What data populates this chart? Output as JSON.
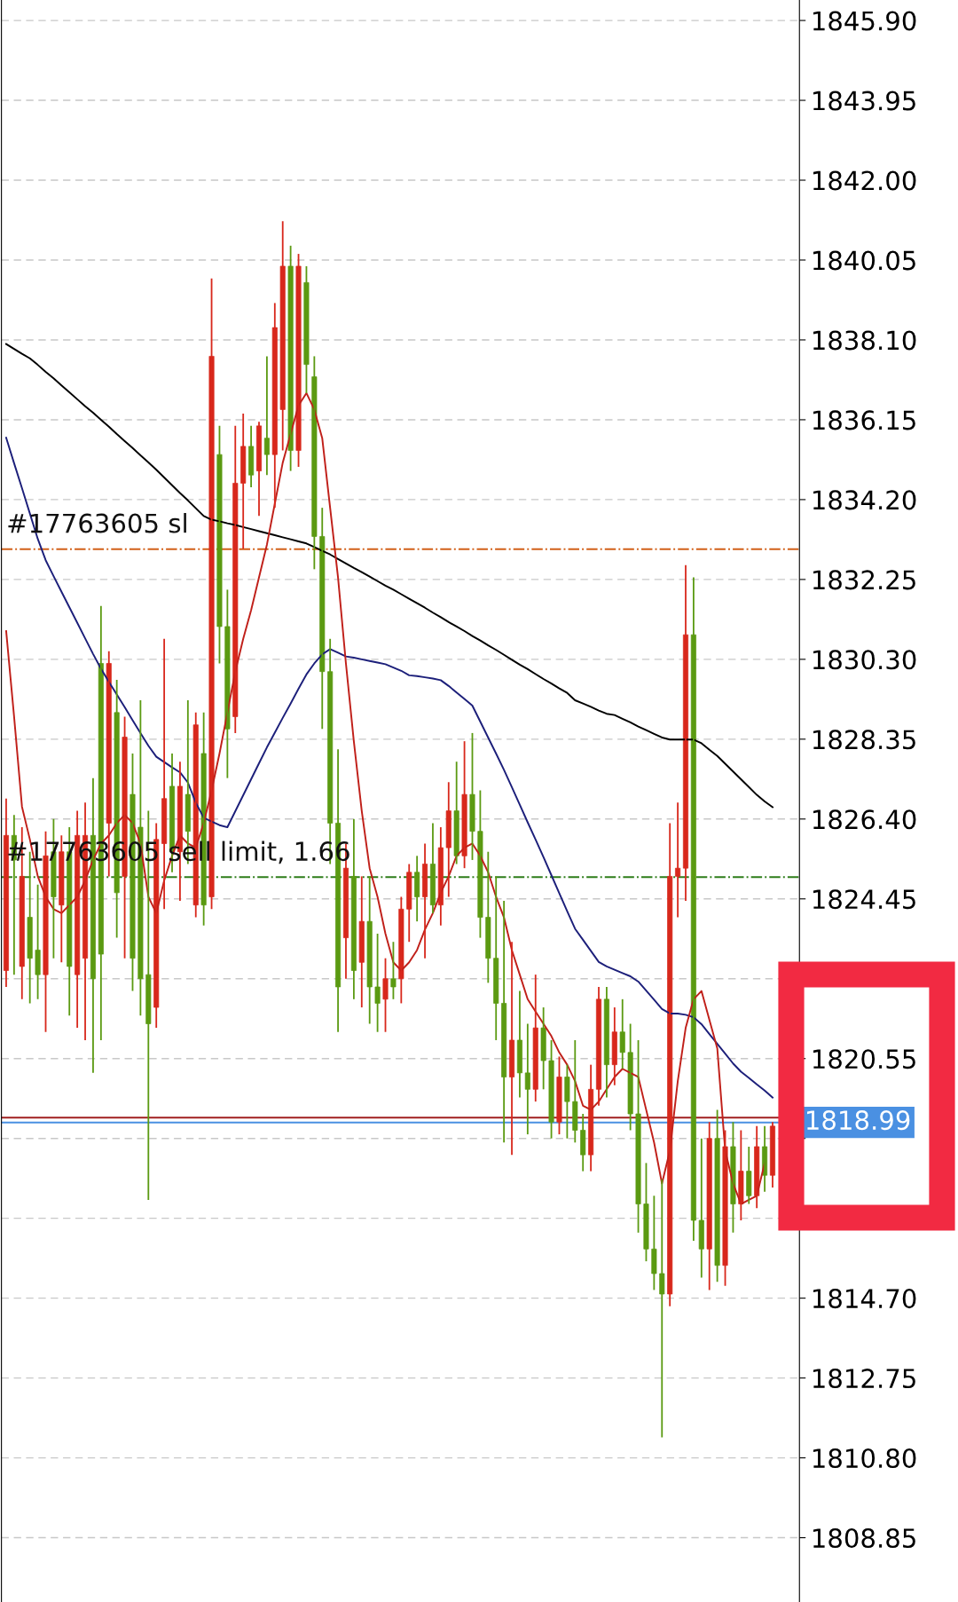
{
  "chart_data": {
    "type": "candlestick",
    "categories": [
      null,
      null,
      null,
      null,
      null,
      null,
      null,
      null,
      null,
      null,
      null,
      null,
      null,
      null,
      null,
      null,
      null,
      null,
      null,
      null,
      null,
      null,
      null,
      null,
      null,
      null,
      null,
      null,
      null,
      null,
      null,
      null,
      null,
      null,
      null,
      null,
      null,
      null,
      null,
      null,
      null,
      null,
      null,
      null,
      null,
      null,
      null,
      null,
      null,
      null,
      null,
      null,
      null,
      null,
      null,
      null,
      null,
      null,
      null,
      null,
      null,
      null,
      null,
      null,
      null,
      null,
      null,
      null,
      null,
      null,
      null,
      null,
      null,
      null,
      null,
      null,
      null,
      null,
      null,
      null,
      null,
      null,
      null,
      null,
      null,
      null,
      null,
      null,
      null,
      null,
      null,
      null,
      null,
      null,
      null,
      null,
      null,
      null
    ],
    "ohlc": [
      [
        1822.7,
        1826.9,
        1822.3,
        1826.0
      ],
      [
        1826.0,
        1826.5,
        1822.6,
        1825.4
      ],
      [
        1822.8,
        1826.2,
        1822.0,
        1825.0
      ],
      [
        1824.0,
        1825.6,
        1821.9,
        1823.0
      ],
      [
        1823.2,
        1824.8,
        1822.0,
        1822.6
      ],
      [
        1822.6,
        1826.1,
        1821.2,
        1825.5
      ],
      [
        1825.6,
        1826.4,
        1823.0,
        1824.5
      ],
      [
        1824.3,
        1826.0,
        1822.9,
        1825.6
      ],
      [
        1825.6,
        1826.2,
        1821.6,
        1822.8
      ],
      [
        1822.6,
        1826.6,
        1821.3,
        1826.0
      ],
      [
        1823.0,
        1826.8,
        1821.0,
        1826.0
      ],
      [
        1826.0,
        1827.4,
        1820.2,
        1822.5
      ],
      [
        1830.2,
        1831.6,
        1821.0,
        1823.1
      ],
      [
        1826.3,
        1830.5,
        1825.0,
        1830.2
      ],
      [
        1829.0,
        1829.8,
        1823.5,
        1824.6
      ],
      [
        1825.0,
        1828.9,
        1823.0,
        1828.4
      ],
      [
        1827.0,
        1828.0,
        1822.2,
        1823.0
      ],
      [
        1826.2,
        1829.3,
        1821.6,
        1822.5
      ],
      [
        1822.6,
        1826.6,
        1817.1,
        1821.4
      ],
      [
        1821.8,
        1826.3,
        1821.3,
        1825.9
      ],
      [
        1825.8,
        1830.8,
        1824.2,
        1826.9
      ],
      [
        1827.2,
        1828.0,
        1825.1,
        1825.6
      ],
      [
        1825.6,
        1827.8,
        1824.4,
        1827.2
      ],
      [
        1827.0,
        1829.3,
        1825.3,
        1826.1
      ],
      [
        1824.3,
        1829.0,
        1824.0,
        1828.7
      ],
      [
        1828.0,
        1829.0,
        1823.8,
        1824.3
      ],
      [
        1824.5,
        1839.6,
        1824.2,
        1837.7
      ],
      [
        1835.3,
        1836.0,
        1830.2,
        1831.1
      ],
      [
        1831.1,
        1832.0,
        1827.4,
        1828.6
      ],
      [
        1828.9,
        1836.0,
        1828.5,
        1834.6
      ],
      [
        1834.6,
        1836.3,
        1833.0,
        1835.5
      ],
      [
        1835.5,
        1836.0,
        1834.5,
        1834.8
      ],
      [
        1834.9,
        1836.1,
        1833.8,
        1836.0
      ],
      [
        1835.7,
        1837.7,
        1834.8,
        1835.3
      ],
      [
        1835.3,
        1839.0,
        1834.0,
        1838.4
      ],
      [
        1836.4,
        1841.0,
        1835.4,
        1839.9
      ],
      [
        1839.9,
        1840.4,
        1834.9,
        1835.4
      ],
      [
        1835.4,
        1840.2,
        1835.0,
        1839.9
      ],
      [
        1839.5,
        1839.9,
        1836.8,
        1837.5
      ],
      [
        1837.2,
        1837.7,
        1832.5,
        1833.3
      ],
      [
        1833.3,
        1834.0,
        1828.6,
        1830.0
      ],
      [
        1830.0,
        1830.8,
        1825.3,
        1826.3
      ],
      [
        1826.3,
        1828.1,
        1821.2,
        1822.3
      ],
      [
        1823.5,
        1825.8,
        1822.5,
        1825.2
      ],
      [
        1825.0,
        1826.4,
        1822.0,
        1822.7
      ],
      [
        1822.9,
        1825.0,
        1821.8,
        1823.9
      ],
      [
        1823.9,
        1825.0,
        1821.4,
        1822.3
      ],
      [
        1822.3,
        1823.6,
        1821.2,
        1821.9
      ],
      [
        1822.0,
        1823.0,
        1821.2,
        1822.5
      ],
      [
        1822.5,
        1823.4,
        1822.0,
        1822.3
      ],
      [
        1822.5,
        1824.5,
        1821.9,
        1824.2
      ],
      [
        1824.2,
        1825.3,
        1823.4,
        1825.1
      ],
      [
        1825.1,
        1825.5,
        1823.9,
        1824.5
      ],
      [
        1824.5,
        1825.8,
        1823.0,
        1825.3
      ],
      [
        1825.3,
        1826.3,
        1824.1,
        1824.3
      ],
      [
        1824.3,
        1826.2,
        1823.8,
        1825.7
      ],
      [
        1825.7,
        1827.3,
        1824.5,
        1826.6
      ],
      [
        1826.6,
        1827.8,
        1825.3,
        1825.5
      ],
      [
        1825.5,
        1828.3,
        1825.2,
        1827.0
      ],
      [
        1827.0,
        1828.5,
        1825.4,
        1826.1
      ],
      [
        1826.1,
        1827.1,
        1823.5,
        1824.0
      ],
      [
        1824.0,
        1825.6,
        1822.4,
        1823.0
      ],
      [
        1823.0,
        1825.0,
        1821.0,
        1821.9
      ],
      [
        1821.9,
        1824.4,
        1818.5,
        1820.1
      ],
      [
        1820.1,
        1823.4,
        1818.2,
        1821.0
      ],
      [
        1821.0,
        1822.2,
        1819.6,
        1820.2
      ],
      [
        1820.2,
        1821.4,
        1818.7,
        1819.8
      ],
      [
        1819.8,
        1822.6,
        1819.5,
        1821.3
      ],
      [
        1821.3,
        1821.8,
        1819.8,
        1820.5
      ],
      [
        1820.5,
        1821.0,
        1818.6,
        1819.0
      ],
      [
        1819.0,
        1820.6,
        1818.7,
        1820.1
      ],
      [
        1820.1,
        1820.4,
        1818.6,
        1819.5
      ],
      [
        1819.5,
        1821.0,
        1818.5,
        1818.8
      ],
      [
        1818.8,
        1819.2,
        1817.8,
        1818.2
      ],
      [
        1818.2,
        1820.4,
        1817.8,
        1819.8
      ],
      [
        1819.8,
        1822.3,
        1819.4,
        1822.0
      ],
      [
        1822.0,
        1822.3,
        1819.6,
        1820.4
      ],
      [
        1820.4,
        1821.8,
        1819.9,
        1821.2
      ],
      [
        1821.2,
        1822.0,
        1820.3,
        1820.7
      ],
      [
        1820.7,
        1821.4,
        1818.8,
        1819.2
      ],
      [
        1819.2,
        1821.0,
        1816.3,
        1817.0
      ],
      [
        1817.0,
        1818.0,
        1815.6,
        1815.9
      ],
      [
        1815.9,
        1817.2,
        1814.9,
        1815.3
      ],
      [
        1815.3,
        1817.6,
        1811.3,
        1814.8
      ],
      [
        1814.8,
        1826.3,
        1814.5,
        1825.0
      ],
      [
        1825.0,
        1826.8,
        1824.0,
        1825.2
      ],
      [
        1825.2,
        1832.6,
        1824.4,
        1830.9
      ],
      [
        1830.9,
        1832.3,
        1816.1,
        1816.6
      ],
      [
        1816.6,
        1818.6,
        1815.2,
        1815.9
      ],
      [
        1815.9,
        1819.0,
        1814.9,
        1818.6
      ],
      [
        1818.6,
        1819.3,
        1815.1,
        1815.5
      ],
      [
        1815.5,
        1818.8,
        1815.0,
        1818.4
      ],
      [
        1818.4,
        1819.0,
        1816.3,
        1817.0
      ],
      [
        1817.0,
        1818.8,
        1816.6,
        1817.8
      ],
      [
        1817.8,
        1818.4,
        1817.0,
        1817.2
      ],
      [
        1817.2,
        1818.9,
        1816.9,
        1818.4
      ],
      [
        1818.4,
        1818.9,
        1817.3,
        1817.7
      ],
      [
        1817.7,
        1819.0,
        1817.4,
        1818.9
      ]
    ],
    "colors": [
      "#d8281c",
      "#5b9a12",
      "#d8281c",
      "#5b9a12",
      "#5b9a12",
      "#d8281c",
      "#5b9a12",
      "#d8281c",
      "#5b9a12",
      "#d8281c",
      "#d8281c",
      "#5b9a12",
      "#5b9a12",
      "#d8281c",
      "#5b9a12",
      "#d8281c",
      "#5b9a12",
      "#5b9a12",
      "#5b9a12",
      "#d8281c",
      "#d8281c",
      "#5b9a12",
      "#d8281c",
      "#5b9a12",
      "#d8281c",
      "#5b9a12",
      "#d8281c",
      "#5b9a12",
      "#5b9a12",
      "#d8281c",
      "#d8281c",
      "#5b9a12",
      "#d8281c",
      "#5b9a12",
      "#d8281c",
      "#d8281c",
      "#5b9a12",
      "#d8281c",
      "#5b9a12",
      "#5b9a12",
      "#5b9a12",
      "#5b9a12",
      "#5b9a12",
      "#d8281c",
      "#5b9a12",
      "#d8281c",
      "#5b9a12",
      "#5b9a12",
      "#d8281c",
      "#5b9a12",
      "#d8281c",
      "#d8281c",
      "#5b9a12",
      "#d8281c",
      "#5b9a12",
      "#d8281c",
      "#d8281c",
      "#5b9a12",
      "#d8281c",
      "#5b9a12",
      "#5b9a12",
      "#5b9a12",
      "#5b9a12",
      "#5b9a12",
      "#d8281c",
      "#5b9a12",
      "#5b9a12",
      "#d8281c",
      "#5b9a12",
      "#5b9a12",
      "#d8281c",
      "#5b9a12",
      "#5b9a12",
      "#5b9a12",
      "#d8281c",
      "#d8281c",
      "#5b9a12",
      "#d8281c",
      "#5b9a12",
      "#5b9a12",
      "#5b9a12",
      "#5b9a12",
      "#5b9a12",
      "#5b9a12",
      "#d8281c",
      "#d8281c",
      "#d8281c",
      "#5b9a12",
      "#5b9a12",
      "#d8281c",
      "#5b9a12",
      "#d8281c",
      "#5b9a12",
      "#d8281c",
      "#5b9a12",
      "#d8281c",
      "#5b9a12",
      "#d8281c"
    ],
    "series": [
      {
        "type": "line",
        "color": "#000000",
        "values": [
          1838.0,
          1837.88,
          1837.76,
          1837.65,
          1837.49,
          1837.32,
          1837.16,
          1836.99,
          1836.82,
          1836.65,
          1836.48,
          1836.32,
          1836.15,
          1835.98,
          1835.8,
          1835.63,
          1835.46,
          1835.28,
          1835.11,
          1834.93,
          1834.74,
          1834.55,
          1834.36,
          1834.18,
          1833.99,
          1833.8,
          1833.71,
          1833.67,
          1833.62,
          1833.58,
          1833.53,
          1833.48,
          1833.43,
          1833.38,
          1833.33,
          1833.28,
          1833.23,
          1833.18,
          1833.13,
          1833.04,
          1832.95,
          1832.86,
          1832.75,
          1832.64,
          1832.53,
          1832.43,
          1832.32,
          1832.21,
          1832.1,
          1832.0,
          1831.89,
          1831.78,
          1831.67,
          1831.56,
          1831.44,
          1831.33,
          1831.21,
          1831.1,
          1830.99,
          1830.87,
          1830.76,
          1830.64,
          1830.53,
          1830.41,
          1830.29,
          1830.17,
          1830.06,
          1829.94,
          1829.82,
          1829.71,
          1829.59,
          1829.48,
          1829.3,
          1829.22,
          1829.14,
          1829.05,
          1828.97,
          1828.94,
          1828.85,
          1828.76,
          1828.66,
          1828.57,
          1828.48,
          1828.39,
          1828.34,
          1828.34,
          1828.34,
          1828.34,
          1828.25,
          1828.09,
          1827.94,
          1827.75,
          1827.56,
          1827.37,
          1827.18,
          1826.99,
          1826.83,
          1826.69
        ]
      },
      {
        "type": "line",
        "color": "#1c1f7a",
        "values": [
          1835.71,
          1835.09,
          1834.48,
          1833.86,
          1833.24,
          1832.72,
          1832.33,
          1831.95,
          1831.57,
          1831.19,
          1830.81,
          1830.43,
          1830.07,
          1829.75,
          1829.44,
          1829.13,
          1828.81,
          1828.5,
          1828.19,
          1827.92,
          1827.79,
          1827.66,
          1827.54,
          1827.29,
          1826.8,
          1826.43,
          1826.34,
          1826.25,
          1826.2,
          1826.59,
          1826.98,
          1827.37,
          1827.76,
          1828.15,
          1828.51,
          1828.87,
          1829.22,
          1829.58,
          1829.93,
          1830.2,
          1830.42,
          1830.55,
          1830.46,
          1830.37,
          1830.34,
          1830.3,
          1830.26,
          1830.22,
          1830.18,
          1830.1,
          1830.02,
          1829.91,
          1829.89,
          1829.86,
          1829.83,
          1829.79,
          1829.65,
          1829.49,
          1829.33,
          1829.17,
          1828.78,
          1828.39,
          1828.0,
          1827.6,
          1827.18,
          1826.75,
          1826.32,
          1825.9,
          1825.47,
          1825.03,
          1824.59,
          1824.15,
          1823.72,
          1823.45,
          1823.18,
          1822.91,
          1822.8,
          1822.72,
          1822.64,
          1822.56,
          1822.43,
          1822.21,
          1821.99,
          1821.76,
          1821.65,
          1821.65,
          1821.62,
          1821.56,
          1821.39,
          1821.15,
          1820.91,
          1820.67,
          1820.43,
          1820.23,
          1820.08,
          1819.92,
          1819.77,
          1819.6
        ]
      },
      {
        "type": "line",
        "color": "#c0201a",
        "values": [
          1830.99,
          1828.9,
          1826.7,
          1825.9,
          1825.0,
          1824.5,
          1824.2,
          1824.1,
          1824.3,
          1824.5,
          1824.9,
          1825.4,
          1825.8,
          1826.0,
          1826.3,
          1826.5,
          1826.3,
          1825.8,
          1824.5,
          1824.1,
          1824.9,
          1825.5,
          1826.0,
          1825.8,
          1825.7,
          1826.3,
          1827.1,
          1828.0,
          1829.0,
          1830.0,
          1830.8,
          1831.5,
          1832.3,
          1833.1,
          1834.1,
          1835.1,
          1835.8,
          1836.5,
          1836.8,
          1836.4,
          1835.7,
          1834.0,
          1832.3,
          1830.2,
          1828.3,
          1826.6,
          1825.2,
          1824.5,
          1823.6,
          1822.9,
          1822.7,
          1822.9,
          1823.2,
          1823.7,
          1824.1,
          1824.6,
          1825.0,
          1825.5,
          1825.7,
          1825.8,
          1825.5,
          1825.1,
          1824.5,
          1824.0,
          1823.2,
          1822.6,
          1822.0,
          1821.7,
          1821.4,
          1821.1,
          1820.7,
          1820.4,
          1820.0,
          1819.4,
          1819.3,
          1819.5,
          1819.8,
          1820.1,
          1820.3,
          1820.2,
          1820.1,
          1819.3,
          1818.5,
          1817.5,
          1818.3,
          1820.0,
          1821.3,
          1822.0,
          1822.2,
          1821.5,
          1820.8,
          1818.3,
          1817.5,
          1817.0,
          1817.1,
          1817.2,
          1818.0,
          null
        ]
      }
    ],
    "ylim": [
      1807.28,
      1846.4
    ],
    "yticks": [
      1808.85,
      {
        "value": 1810.8,
        "label": "1810.80"
      },
      1812.75,
      {
        "value": 1814.7,
        "label": "1814.70"
      },
      {
        "value": 1816.65,
        "label": null
      },
      {
        "value": 1818.6,
        "label": null
      },
      1820.55,
      {
        "value": 1822.5,
        "label": null
      },
      1824.45,
      {
        "value": 1826.4,
        "label": "1826.40"
      },
      1828.35,
      {
        "value": 1830.3,
        "label": "1830.30"
      },
      1832.25,
      {
        "value": 1834.2,
        "label": "1834.20"
      },
      1836.15,
      {
        "value": 1838.1,
        "label": "1838.10"
      },
      1840.05,
      {
        "value": 1842.0,
        "label": "1842.00"
      },
      1843.95,
      {
        "value": 1845.9,
        "label": "1845.90"
      }
    ],
    "ref_lines": [
      {
        "axis": "y",
        "value": 1832.99,
        "label": "#17763605 sl",
        "color": "#d2601a",
        "line_style": "dashdot"
      },
      {
        "axis": "y",
        "value": 1824.98,
        "label": "#17763605 sell limit, 1.66",
        "color": "#2e7d1a",
        "line_style": "dashdot"
      },
      {
        "axis": "y",
        "value": 1819.11,
        "label": null,
        "color": "#a02020",
        "line_style": "solid"
      },
      {
        "axis": "y",
        "value": 1818.99,
        "label": "1818.99",
        "color": "#4a90e2",
        "line_style": "solid"
      }
    ],
    "grid": "y",
    "tick_labels": "y"
  }
}
